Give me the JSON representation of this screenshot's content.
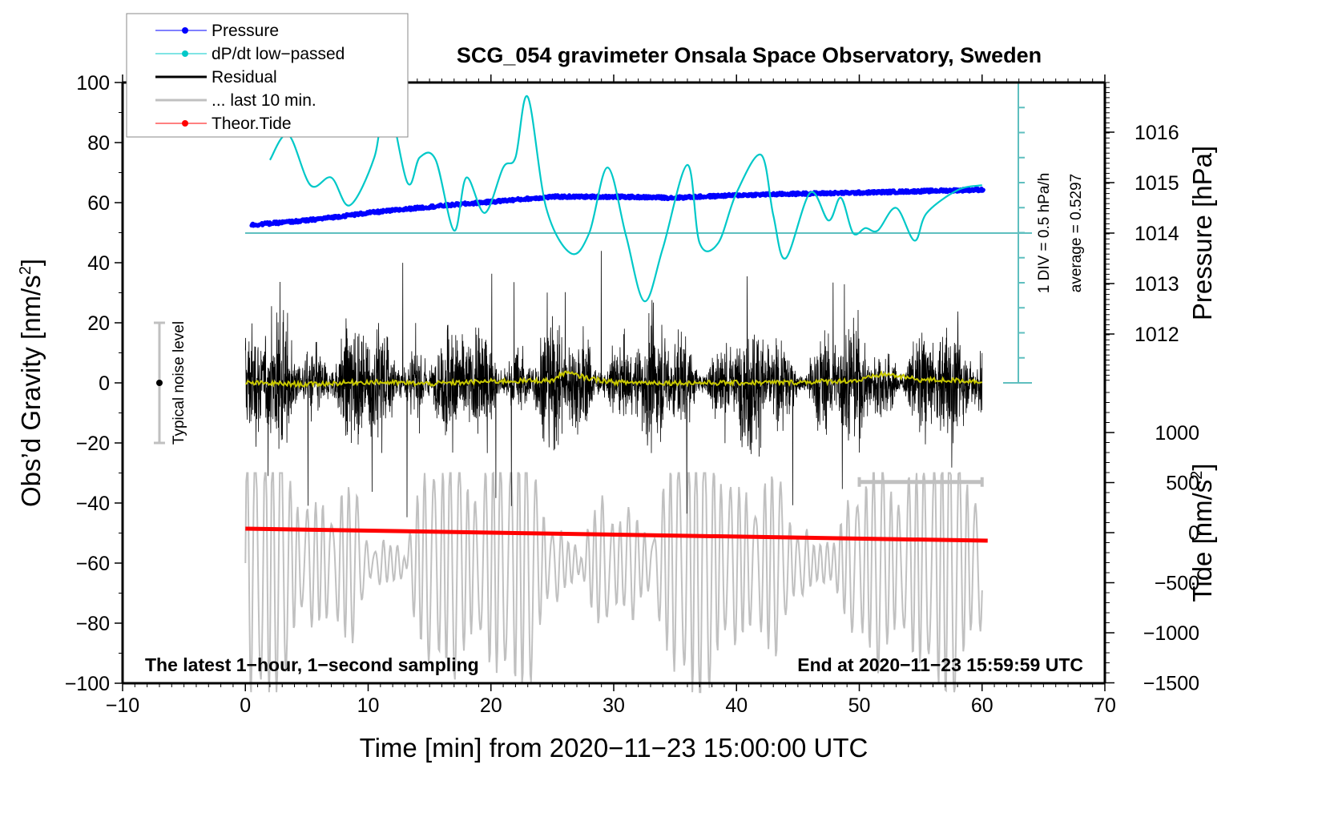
{
  "chart_data": {
    "type": "line",
    "title": "SCG_054 gravimeter Onsala Space Observatory, Sweden",
    "xlabel": "Time [min] from 2020−11−23 15:00:00 UTC",
    "ylabel_left": "Obs’d Gravity [nm/s",
    "ylabel_left_sup": "2",
    "ylabel_left_end": "]",
    "ylabel_right_pressure": "Pressure [hPa]",
    "ylabel_right_tide": "Tide [nm/s",
    "ylabel_right_tide_sup": "2",
    "ylabel_right_tide_end": "]",
    "xlim": [
      -10,
      70
    ],
    "ylim_left": [
      -100,
      100
    ],
    "x_ticks": [
      -10,
      0,
      10,
      20,
      30,
      40,
      50,
      60,
      70
    ],
    "x_tick_labels": [
      "−10",
      "0",
      "10",
      "20",
      "30",
      "40",
      "50",
      "60",
      "70"
    ],
    "y_ticks_left": [
      100,
      80,
      60,
      40,
      20,
      0,
      -20,
      -40,
      -60,
      -80,
      -100
    ],
    "y_tick_labels_left": [
      "100",
      "80",
      "60",
      "40",
      "20",
      "0",
      "−20",
      "−40",
      "−60",
      "−80",
      "−100"
    ],
    "pressure_ticks": [
      1016,
      1015,
      1014,
      1013,
      1012
    ],
    "pressure_tick_labels": [
      "1016",
      "1015",
      "1014",
      "1013",
      "1012"
    ],
    "tide_ticks": [
      1000,
      500,
      0,
      -500,
      -1000,
      -1500
    ],
    "tide_tick_labels": [
      "1000",
      "500",
      "0",
      "−500",
      "−1000",
      "−1500"
    ],
    "grid": false,
    "legend_position": "top-left",
    "legend": [
      {
        "label": "Pressure",
        "color": "#0000ff",
        "marker": "dot"
      },
      {
        "label": "dP/dt low−passed",
        "color": "#00c8c8",
        "marker": "dot"
      },
      {
        "label": "Residual",
        "color": "#000000",
        "marker": "line"
      },
      {
        "label": "... last 10 min.",
        "color": "#c0c0c0",
        "marker": "line"
      },
      {
        "label": "Theor.Tide",
        "color": "#ff0000",
        "marker": "dot"
      }
    ],
    "series": [
      {
        "name": "Pressure",
        "axis": "pressure_hPa",
        "color": "#0000ff",
        "x": [
          0,
          5,
          10,
          15,
          20,
          25,
          30,
          35,
          40,
          45,
          50,
          55,
          60
        ],
        "values": [
          1014.15,
          1014.25,
          1014.4,
          1014.52,
          1014.62,
          1014.72,
          1014.72,
          1014.7,
          1014.75,
          1014.78,
          1014.8,
          1014.83,
          1014.86
        ]
      },
      {
        "name": "dP/dt low-passed",
        "axis": "dPdt_div",
        "color": "#00c8c8",
        "units": "hPa/h (1 DIV = 0.5 hPa/h, zero line = average)",
        "x": [
          2,
          3.5,
          5.3,
          7,
          8.5,
          10.5,
          11.5,
          13.2,
          14.2,
          15.5,
          17,
          18,
          19.5,
          21,
          22,
          23,
          24.5,
          26.5,
          28,
          29.5,
          31,
          32.5,
          34,
          36,
          37,
          38.5,
          40,
          42,
          43,
          44,
          46,
          47.5,
          48.5,
          49.5,
          50.5,
          51.5,
          53,
          54.5,
          55.5,
          58,
          60
        ],
        "values": [
          1.45,
          1.95,
          0.95,
          1.1,
          0.55,
          1.5,
          2.7,
          1.0,
          1.5,
          1.45,
          0.05,
          1.1,
          0.4,
          1.3,
          1.5,
          2.7,
          0.5,
          -0.4,
          0.0,
          1.3,
          -0.05,
          -1.35,
          -0.3,
          1.35,
          -0.2,
          -0.2,
          0.8,
          1.55,
          0.35,
          -0.5,
          0.8,
          0.25,
          0.7,
          0.0,
          0.1,
          0.05,
          0.5,
          -0.15,
          0.4,
          0.85,
          0.95
        ]
      },
      {
        "name": "Residual",
        "axis": "gravity_nm_s2",
        "color": "#000000",
        "x_range": [
          0,
          60
        ],
        "typical_envelope": [
          -30,
          30
        ],
        "max_spike": 48,
        "min_spike": -45
      },
      {
        "name": "Residual smoothed",
        "axis": "gravity_nm_s2",
        "color": "#c8c800",
        "x": [
          0,
          5,
          10,
          15,
          20,
          25,
          26,
          28,
          30,
          35,
          40,
          45,
          50,
          52,
          55,
          58,
          60
        ],
        "values": [
          0,
          -0.5,
          0.3,
          -0.3,
          0.5,
          0.8,
          3.5,
          1.5,
          0.2,
          0,
          0,
          0.2,
          0.8,
          3,
          1,
          0.8,
          0.5
        ]
      },
      {
        "name": "... last 10 min.",
        "axis": "gravity_nm_s2",
        "color": "#c0c0c0",
        "x_range": [
          0,
          60
        ],
        "offset_center": -60,
        "envelope": [
          -100,
          -35
        ]
      },
      {
        "name": "Theor.Tide",
        "axis": "tide_nm_s2",
        "color": "#ff0000",
        "x": [
          0,
          10,
          20,
          30,
          40,
          50,
          60
        ],
        "values": [
          40,
          30,
          10,
          -15,
          -40,
          -60,
          -80
        ]
      }
    ],
    "annotations": {
      "noise_label": "Typical noise level",
      "noise_range": [
        -20,
        20
      ],
      "noise_x": -7,
      "scale_text": "1 DIV = 0.5 hPa/h",
      "average_text": "average = 0.5297",
      "bottom_left": "The latest 1−hour, 1−second sampling",
      "bottom_right": "End at 2020−11−23 15:59:59 UTC",
      "last10_bar_x": [
        50,
        60
      ],
      "last10_bar_y": -33
    }
  }
}
